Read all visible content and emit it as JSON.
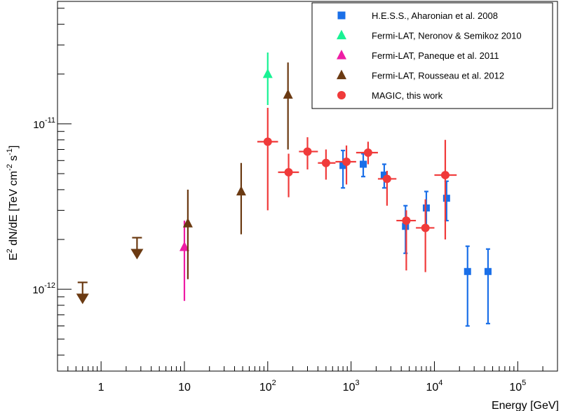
{
  "chart_data": {
    "type": "scatter",
    "title": "",
    "xlabel": "Energy [GeV]",
    "ylabel_parts": [
      "E",
      "2",
      " dN/dE [TeV cm",
      "-2",
      " s",
      "-1",
      "]"
    ],
    "x_scale": "log",
    "y_scale": "log",
    "xlim": [
      0.3,
      300000
    ],
    "ylim": [
      3.2e-13,
      5.5e-11
    ],
    "grid": false,
    "legend_position": "top-right",
    "x_ticks": [
      {
        "value": 1,
        "base": "1",
        "exp": ""
      },
      {
        "value": 10,
        "base": "10",
        "exp": ""
      },
      {
        "value": 100,
        "base": "10",
        "exp": "2"
      },
      {
        "value": 1000,
        "base": "10",
        "exp": "3"
      },
      {
        "value": 10000,
        "base": "10",
        "exp": "4"
      },
      {
        "value": 100000,
        "base": "10",
        "exp": "5"
      }
    ],
    "y_ticks": [
      {
        "value": 1e-12,
        "base": "10",
        "exp": "-12"
      },
      {
        "value": 1e-11,
        "base": "10",
        "exp": "-11"
      }
    ],
    "series": [
      {
        "name": "H.E.S.S., Aharonian et al. 2008",
        "marker": "square",
        "color": "#1a6fe8",
        "points": [
          {
            "x": 800,
            "y": 5.6e-12,
            "ylo": 4.1e-12,
            "yhi": 6.9e-12
          },
          {
            "x": 1400,
            "y": 5.7e-12,
            "ylo": 4.8e-12,
            "yhi": 6.6e-12
          },
          {
            "x": 2500,
            "y": 4.9e-12,
            "ylo": 4.1e-12,
            "yhi": 5.7e-12
          },
          {
            "x": 4500,
            "y": 2.4e-12,
            "ylo": 1.65e-12,
            "yhi": 3.2e-12
          },
          {
            "x": 8000,
            "y": 3.1e-12,
            "ylo": 2.3e-12,
            "yhi": 3.9e-12
          },
          {
            "x": 14000,
            "y": 3.55e-12,
            "ylo": 2.6e-12,
            "yhi": 4.5e-12
          },
          {
            "x": 25000,
            "y": 1.28e-12,
            "ylo": 6e-13,
            "yhi": 1.82e-12
          },
          {
            "x": 44000,
            "y": 1.28e-12,
            "ylo": 6.2e-13,
            "yhi": 1.75e-12
          }
        ]
      },
      {
        "name": "Fermi-LAT, Neronov & Semikoz 2010",
        "marker": "triangle",
        "color": "#19f294",
        "points": [
          {
            "x": 100,
            "y": 2e-11,
            "ylo": 1.3e-11,
            "yhi": 2.7e-11
          }
        ]
      },
      {
        "name": "Fermi-LAT, Paneque et al. 2011",
        "marker": "triangle",
        "color": "#ee1ca4",
        "points": [
          {
            "x": 10,
            "y": 1.8e-12,
            "ylo": 8.5e-13,
            "yhi": 2.6e-12
          }
        ]
      },
      {
        "name": "Fermi-LAT, Rousseau et al. 2012",
        "marker": "triangle",
        "color": "#6b3a12",
        "points": [
          {
            "x": 11,
            "y": 2.5e-12,
            "ylo": 1.15e-12,
            "yhi": 4e-12
          },
          {
            "x": 48,
            "y": 3.9e-12,
            "ylo": 2.15e-12,
            "yhi": 5.8e-12
          },
          {
            "x": 175,
            "y": 1.5e-11,
            "ylo": 7e-12,
            "yhi": 2.35e-11
          }
        ],
        "upper_limits": [
          {
            "x": 0.6,
            "y": 1.1e-12
          },
          {
            "x": 2.7,
            "y": 2.05e-12
          }
        ]
      },
      {
        "name": "MAGIC, this work",
        "marker": "circle",
        "color": "#f03a3a",
        "points": [
          {
            "x": 100,
            "y": 7.8e-12,
            "ylo": 3e-12,
            "yhi": 1.25e-11,
            "xlo": 75,
            "xhi": 133
          },
          {
            "x": 178,
            "y": 5.1e-12,
            "ylo": 3.6e-12,
            "yhi": 6.6e-12,
            "xlo": 133,
            "xhi": 237
          },
          {
            "x": 300,
            "y": 6.8e-12,
            "ylo": 5.3e-12,
            "yhi": 8.3e-12,
            "xlo": 237,
            "xhi": 400
          },
          {
            "x": 500,
            "y": 5.8e-12,
            "ylo": 4.6e-12,
            "yhi": 7e-12,
            "xlo": 400,
            "xhi": 650
          },
          {
            "x": 880,
            "y": 5.9e-12,
            "ylo": 4.3e-12,
            "yhi": 7.4e-12,
            "xlo": 650,
            "xhi": 1150
          },
          {
            "x": 1600,
            "y": 6.7e-12,
            "ylo": 5.7e-12,
            "yhi": 7.8e-12,
            "xlo": 1150,
            "xhi": 2100
          },
          {
            "x": 2700,
            "y": 4.65e-12,
            "ylo": 3.2e-12,
            "yhi": 5.2e-12,
            "xlo": 2100,
            "xhi": 3500
          },
          {
            "x": 4600,
            "y": 2.6e-12,
            "ylo": 1.3e-12,
            "yhi": 3e-12,
            "xlo": 3500,
            "xhi": 6000
          },
          {
            "x": 7800,
            "y": 2.35e-12,
            "ylo": 1.27e-12,
            "yhi": 3.5e-12,
            "xlo": 6000,
            "xhi": 10000
          },
          {
            "x": 13500,
            "y": 4.9e-12,
            "ylo": 2e-12,
            "yhi": 8e-12,
            "xlo": 10000,
            "xhi": 18500
          }
        ]
      }
    ]
  }
}
